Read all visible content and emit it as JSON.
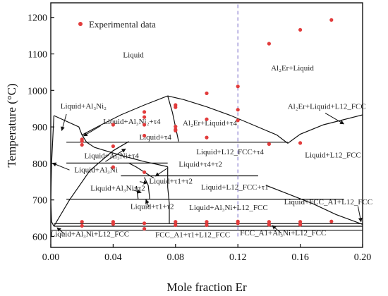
{
  "chart_data": {
    "type": "scatter",
    "xlabel": "Mole fraction Er",
    "ylabel": "Temperature (°C)",
    "xlim": [
      0,
      0.2
    ],
    "ylim": [
      570,
      1240
    ],
    "x_ticks": [
      0.0,
      0.04,
      0.08,
      0.12,
      0.16,
      0.2
    ],
    "x_tick_labels": [
      "0.00",
      "0.04",
      "0.08",
      "0.12",
      "0.16",
      "0.20"
    ],
    "y_ticks": [
      600,
      700,
      800,
      900,
      1000,
      1100,
      1200
    ],
    "y_tick_labels": [
      "600",
      "700",
      "800",
      "900",
      "1000",
      "1100",
      "1200"
    ],
    "grid": false,
    "legend_position": "top-left",
    "colors": {
      "points": "#e23c3c",
      "dashed_line": "#8a7fd0",
      "lines": "#111111"
    },
    "legend": [
      {
        "label": "Experimental data",
        "marker": "dot"
      }
    ],
    "series": [
      {
        "name": "Experimental data",
        "points": [
          [
            0.02,
            866
          ],
          [
            0.02,
            861
          ],
          [
            0.02,
            851
          ],
          [
            0.02,
            640
          ],
          [
            0.02,
            629
          ],
          [
            0.04,
            906
          ],
          [
            0.04,
            847
          ],
          [
            0.04,
            790
          ],
          [
            0.04,
            640
          ],
          [
            0.04,
            634
          ],
          [
            0.06,
            941
          ],
          [
            0.06,
            927
          ],
          [
            0.06,
            906
          ],
          [
            0.06,
            876
          ],
          [
            0.06,
            776
          ],
          [
            0.06,
            636
          ],
          [
            0.06,
            621
          ],
          [
            0.08,
            960
          ],
          [
            0.08,
            954
          ],
          [
            0.08,
            901
          ],
          [
            0.08,
            893
          ],
          [
            0.08,
            890
          ],
          [
            0.08,
            640
          ],
          [
            0.08,
            631
          ],
          [
            0.1,
            992
          ],
          [
            0.1,
            921
          ],
          [
            0.1,
            871
          ],
          [
            0.1,
            640
          ],
          [
            0.1,
            631
          ],
          [
            0.12,
            1011
          ],
          [
            0.12,
            947
          ],
          [
            0.12,
            918
          ],
          [
            0.12,
            641
          ],
          [
            0.12,
            636
          ],
          [
            0.14,
            1128
          ],
          [
            0.14,
            853
          ],
          [
            0.14,
            640
          ],
          [
            0.14,
            632
          ],
          [
            0.16,
            1166
          ],
          [
            0.16,
            856
          ],
          [
            0.16,
            640
          ],
          [
            0.16,
            632
          ],
          [
            0.18,
            1193
          ],
          [
            0.18,
            641
          ]
        ]
      }
    ],
    "reference_line": {
      "x": 0.12,
      "y_range": [
        600,
        1240
      ],
      "style": "dashed"
    },
    "phase_boundaries": [
      [
        [
          0.002,
          931
        ],
        [
          0.018,
          900
        ],
        [
          0.02,
          878
        ],
        [
          0.023,
          858
        ],
        [
          0.028,
          844
        ],
        [
          0.045,
          822
        ],
        [
          0.06,
          805
        ],
        [
          0.075,
          791
        ]
      ],
      [
        [
          0.02,
          878
        ],
        [
          0.032,
          905
        ],
        [
          0.045,
          933
        ],
        [
          0.06,
          960
        ],
        [
          0.075,
          985
        ]
      ],
      [
        [
          0.075,
          985
        ],
        [
          0.085,
          975
        ],
        [
          0.1,
          955
        ],
        [
          0.115,
          932
        ],
        [
          0.13,
          905
        ],
        [
          0.145,
          878
        ],
        [
          0.152,
          855
        ]
      ],
      [
        [
          0.152,
          855
        ],
        [
          0.16,
          880
        ],
        [
          0.175,
          906
        ],
        [
          0.2,
          933
        ]
      ],
      [
        [
          0.075,
          985
        ],
        [
          0.078,
          940
        ],
        [
          0.08,
          900
        ],
        [
          0.082,
          860
        ]
      ],
      [
        [
          0.002,
          931
        ],
        [
          0.0005,
          800
        ],
        [
          0,
          700
        ],
        [
          0.0005,
          640
        ],
        [
          0.002,
          628
        ]
      ],
      [
        [
          0.002,
          628
        ],
        [
          0.012,
          700
        ],
        [
          0.025,
          780
        ],
        [
          0.04,
          835
        ],
        [
          0.05,
          860
        ]
      ],
      [
        [
          0.075,
          791
        ],
        [
          0.075,
          735
        ],
        [
          0.076,
          690
        ],
        [
          0.076,
          650
        ],
        [
          0.076,
          635
        ]
      ],
      [
        [
          0.05,
          801
        ],
        [
          0.055,
          790
        ],
        [
          0.06,
          776
        ],
        [
          0.066,
          760
        ]
      ],
      [
        [
          0.055,
          738
        ],
        [
          0.056,
          702
        ]
      ],
      [
        [
          0.06,
          762
        ],
        [
          0.0625,
          740
        ],
        [
          0.0635,
          702
        ]
      ],
      [
        [
          0.138,
          740
        ],
        [
          0.15,
          720
        ],
        [
          0.168,
          690
        ],
        [
          0.183,
          660
        ],
        [
          0.2,
          633
        ]
      ],
      [
        [
          0.01,
          858
        ],
        [
          0.152,
          858
        ]
      ],
      [
        [
          0.01,
          801
        ],
        [
          0.075,
          801
        ]
      ],
      [
        [
          0.045,
          766
        ],
        [
          0.133,
          766
        ]
      ],
      [
        [
          0.01,
          702
        ],
        [
          0.188,
          702
        ]
      ],
      [
        [
          0.002,
          635
        ],
        [
          0.2,
          635
        ]
      ],
      [
        [
          0.002,
          628
        ],
        [
          0.2,
          628
        ]
      ],
      [
        [
          0,
          617
        ],
        [
          0.2,
          617
        ]
      ]
    ],
    "region_labels": [
      {
        "text": "Liquid",
        "x": 0.053,
        "y": 1090
      },
      {
        "text": "Al₂Er+Liquid",
        "x": 0.155,
        "y": 1055
      },
      {
        "text": "Liquid+Al₃Ni₂",
        "x": 0.021,
        "y": 950
      },
      {
        "text": "Liquid+Al₃Ni₂+τ4",
        "x": 0.052,
        "y": 908
      },
      {
        "text": "Al₂Er+Liquid+τ4",
        "x": 0.102,
        "y": 904
      },
      {
        "text": "Al₂Er+Liquid+L12_FCC",
        "x": 0.177,
        "y": 949
      },
      {
        "text": "Liquid+τ4",
        "x": 0.067,
        "y": 865
      },
      {
        "text": "Liquid+L12_FCC+τ4",
        "x": 0.115,
        "y": 825
      },
      {
        "text": "Liquid+Al₃Ni+τ4",
        "x": 0.039,
        "y": 814
      },
      {
        "text": "Liquid+L12_FCC",
        "x": 0.181,
        "y": 816
      },
      {
        "text": "Liquid+τ4+τ2",
        "x": 0.096,
        "y": 791
      },
      {
        "text": "Liquid+Al₃Ni",
        "x": 0.029,
        "y": 776
      },
      {
        "text": "Liquid+τ1+τ2",
        "x": 0.077,
        "y": 745
      },
      {
        "text": "Liquid+Al₃Ni+τ2",
        "x": 0.043,
        "y": 725
      },
      {
        "text": "Liquid+L12_FCC+τ1",
        "x": 0.118,
        "y": 728
      },
      {
        "text": "Liquid+τ1+τ2",
        "x": 0.065,
        "y": 675
      },
      {
        "text": "Liquid+Al₃Ni+L12_FCC",
        "x": 0.114,
        "y": 672
      },
      {
        "text": "Liquid+FCC_A1+L12_FCC",
        "x": 0.178,
        "y": 688
      },
      {
        "text": "Liquid+Al₃Ni+L12_FCC",
        "x": 0.025,
        "y": 600
      },
      {
        "text": "FCC_A1+τ1+L12_FCC",
        "x": 0.091,
        "y": 598
      },
      {
        "text": "FCC_A1+Al₃Ni+L12_FCC",
        "x": 0.149,
        "y": 603
      }
    ],
    "arrows": [
      {
        "from": [
          0.01,
          935
        ],
        "to": [
          0.007,
          890
        ]
      },
      {
        "from": [
          0.032,
          903
        ],
        "to": [
          0.021,
          875
        ]
      },
      {
        "from": [
          0.035,
          805
        ],
        "to": [
          0.048,
          840
        ]
      },
      {
        "from": [
          0.012,
          782
        ],
        "to": [
          0.001,
          801
        ]
      },
      {
        "from": [
          0.0745,
          786
        ],
        "to": [
          0.067,
          765
        ]
      },
      {
        "from": [
          0.053,
          727
        ],
        "to": [
          0.058,
          720
        ]
      },
      {
        "from": [
          0.057,
          750
        ],
        "to": [
          0.062,
          746
        ]
      },
      {
        "from": [
          0.063,
          680
        ],
        "to": [
          0.061,
          701
        ]
      },
      {
        "from": [
          0.009,
          606
        ],
        "to": [
          0.004,
          624
        ]
      },
      {
        "from": [
          0.148,
          608
        ],
        "to": [
          0.142,
          630
        ]
      },
      {
        "from": [
          0.197,
          683
        ],
        "to": [
          0.199,
          640
        ]
      },
      {
        "from": [
          0.176,
          938
        ],
        "to": [
          0.188,
          908
        ]
      }
    ]
  }
}
